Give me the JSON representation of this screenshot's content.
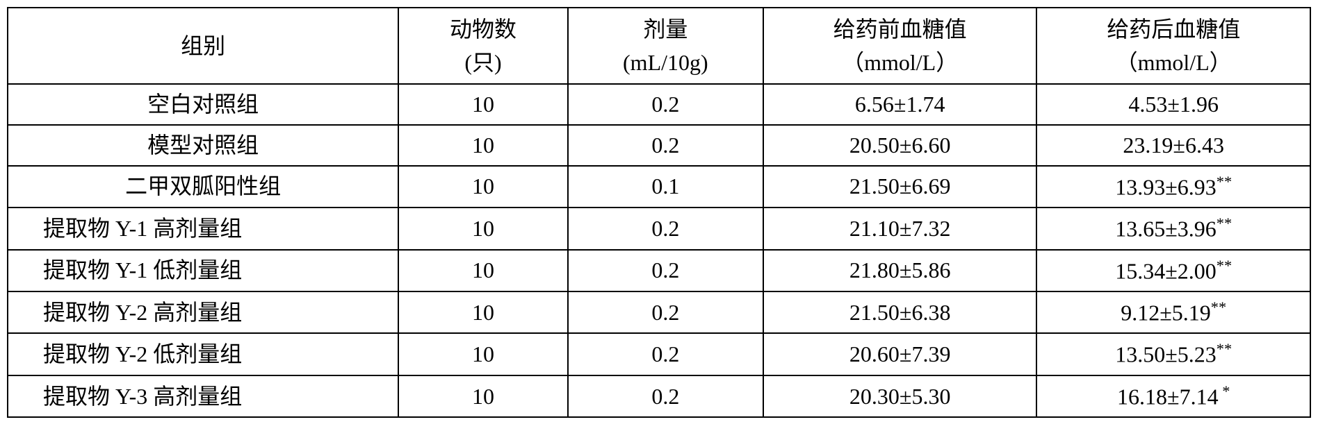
{
  "table": {
    "type": "table",
    "background_color": "#ffffff",
    "border_color": "#000000",
    "border_width": 2,
    "font_family": "SimSun",
    "header_fontsize": 32,
    "cell_fontsize": 32,
    "text_color": "#000000",
    "columns": [
      {
        "key": "group",
        "header_line1": "组别",
        "header_line2": "",
        "width_pct": 30,
        "align": "center"
      },
      {
        "key": "animals",
        "header_line1": "动物数",
        "header_line2": "(只)",
        "width_pct": 13,
        "align": "center"
      },
      {
        "key": "dose",
        "header_line1": "剂量",
        "header_line2": "(mL/10g)",
        "width_pct": 15,
        "align": "center"
      },
      {
        "key": "before",
        "header_line1": "给药前血糖值",
        "header_line2": "（mmol/L）",
        "width_pct": 21,
        "align": "center"
      },
      {
        "key": "after",
        "header_line1": "给药后血糖值",
        "header_line2": "（mmol/L）",
        "width_pct": 21,
        "align": "center"
      }
    ],
    "rows": [
      {
        "group": "空白对照组",
        "animals": "10",
        "dose": "0.2",
        "before": "6.56±1.74",
        "after": "4.53±1.96",
        "after_sup": "",
        "left_align": false
      },
      {
        "group": "模型对照组",
        "animals": "10",
        "dose": "0.2",
        "before": "20.50±6.60",
        "after": "23.19±6.43",
        "after_sup": "",
        "left_align": false
      },
      {
        "group": "二甲双胍阳性组",
        "animals": "10",
        "dose": "0.1",
        "before": "21.50±6.69",
        "after": "13.93±6.93",
        "after_sup": "**",
        "left_align": false
      },
      {
        "group": "提取物 Y-1 高剂量组",
        "animals": "10",
        "dose": "0.2",
        "before": "21.10±7.32",
        "after": "13.65±3.96",
        "after_sup": "**",
        "left_align": true
      },
      {
        "group": "提取物 Y-1 低剂量组",
        "animals": "10",
        "dose": "0.2",
        "before": "21.80±5.86",
        "after": "15.34±2.00",
        "after_sup": "**",
        "left_align": true
      },
      {
        "group": "提取物 Y-2 高剂量组",
        "animals": "10",
        "dose": "0.2",
        "before": "21.50±6.38",
        "after": "9.12±5.19",
        "after_sup": "**",
        "left_align": true
      },
      {
        "group": "提取物 Y-2 低剂量组",
        "animals": "10",
        "dose": "0.2",
        "before": "20.60±7.39",
        "after": "13.50±5.23",
        "after_sup": "**",
        "left_align": true
      },
      {
        "group": "提取物 Y-3 高剂量组",
        "animals": "10",
        "dose": "0.2",
        "before": "20.30±5.30",
        "after": "16.18±7.14",
        "after_sup": " *",
        "left_align": true
      }
    ]
  }
}
